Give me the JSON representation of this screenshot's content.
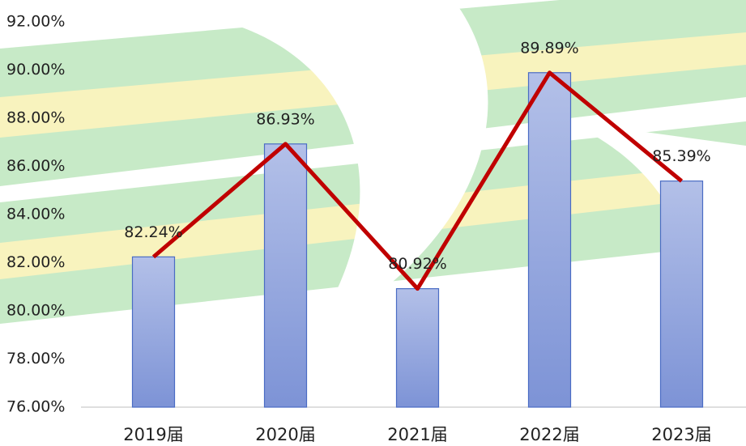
{
  "chart_data": {
    "type": "bar",
    "categories": [
      "2019届",
      "2020届",
      "2021届",
      "2022届",
      "2023届"
    ],
    "values": [
      82.24,
      86.93,
      80.92,
      89.89,
      85.39
    ],
    "value_labels": [
      "82.24%",
      "86.93%",
      "80.92%",
      "89.89%",
      "85.39%"
    ],
    "color": "#8fa3dc",
    "line_color": "#c00000",
    "ylim": [
      76,
      92
    ],
    "yticks": [
      {
        "value": 76,
        "label": "76.00%"
      },
      {
        "value": 78,
        "label": "78.00%"
      },
      {
        "value": 80,
        "label": "80.00%"
      },
      {
        "value": 82,
        "label": "82.00%"
      },
      {
        "value": 84,
        "label": "84.00%"
      },
      {
        "value": 86,
        "label": "86.00%"
      },
      {
        "value": 88,
        "label": "88.00%"
      },
      {
        "value": 90,
        "label": "90.00%"
      },
      {
        "value": 92,
        "label": "92.00%"
      }
    ]
  }
}
